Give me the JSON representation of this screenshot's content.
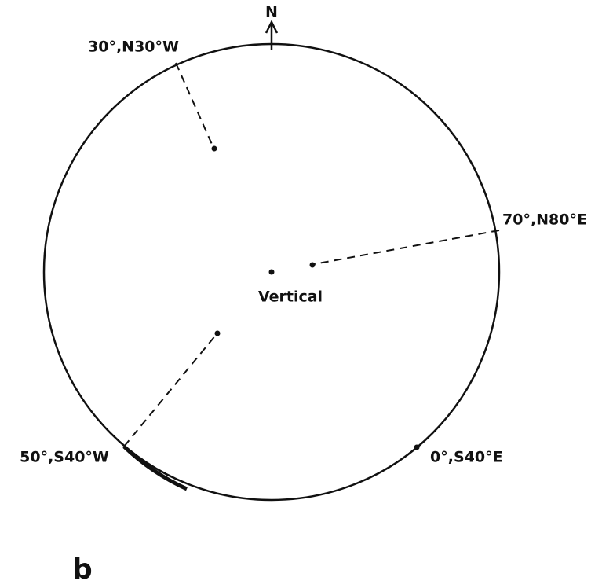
{
  "north": "N",
  "nodes": [
    {
      "label": "30°,N30°W"
    },
    {
      "label": "70°,N80°E"
    },
    {
      "label": "Vertical"
    },
    {
      "label": "50°,S40°W"
    },
    {
      "label": "0°,S40°E"
    }
  ],
  "panel": "b"
}
